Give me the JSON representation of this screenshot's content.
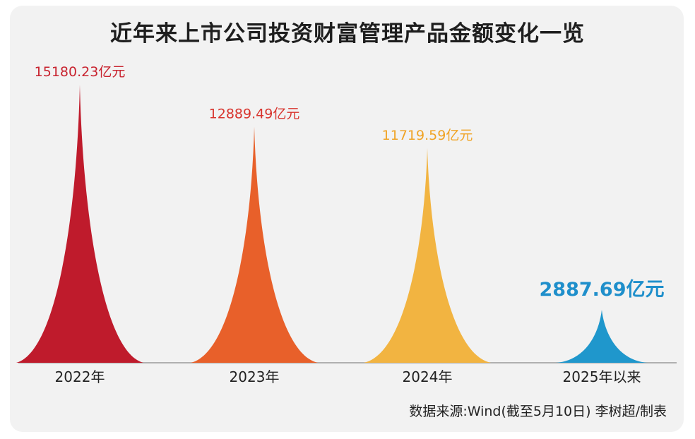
{
  "title": "近年来上市公司投资财富管理产品金额变化一览",
  "source": "数据来源:Wind(截至5月10日) 李树超/制表",
  "chart_data": {
    "type": "bar",
    "categories": [
      "2022年",
      "2023年",
      "2024年",
      "2025年以来"
    ],
    "values": [
      15180.23,
      12889.49,
      11719.59,
      2887.69
    ],
    "labels": [
      "15180.23亿元",
      "12889.49亿元",
      "11719.59亿元",
      "2887.69亿元"
    ],
    "colors": [
      "#bf1b2c",
      "#e8602a",
      "#f2b441",
      "#1f97cc"
    ],
    "label_colors": [
      "#c8232f",
      "#d8342d",
      "#f0a324",
      "#1f8fcb"
    ],
    "unit": "亿元",
    "ylim": [
      0,
      16000
    ],
    "grid": false
  }
}
